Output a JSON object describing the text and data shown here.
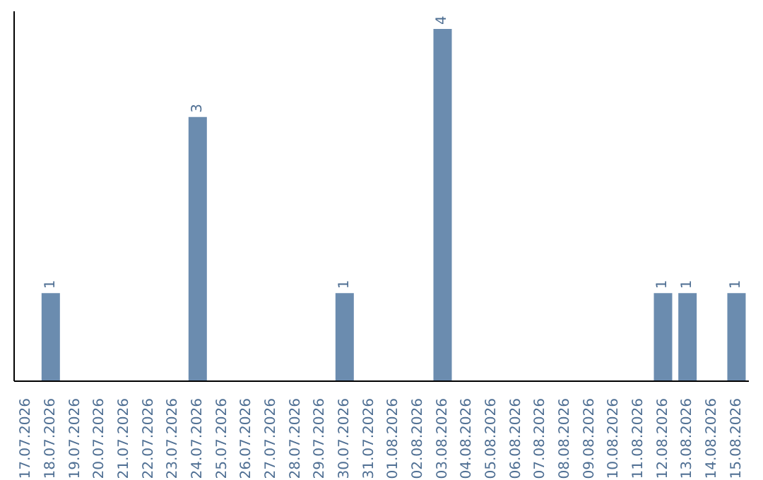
{
  "chart_data": {
    "type": "bar",
    "categories": [
      "17.07.2026",
      "18.07.2026",
      "19.07.2026",
      "20.07.2026",
      "21.07.2026",
      "22.07.2026",
      "23.07.2026",
      "24.07.2026",
      "25.07.2026",
      "26.07.2026",
      "27.07.2026",
      "28.07.2026",
      "29.07.2026",
      "30.07.2026",
      "31.07.2026",
      "01.08.2026",
      "02.08.2026",
      "03.08.2026",
      "04.08.2026",
      "05.08.2026",
      "06.08.2026",
      "07.08.2026",
      "08.08.2026",
      "09.08.2026",
      "10.08.2026",
      "11.08.2026",
      "12.08.2026",
      "13.08.2026",
      "14.08.2026",
      "15.08.2026"
    ],
    "values": [
      null,
      1,
      null,
      null,
      null,
      null,
      null,
      3,
      null,
      null,
      null,
      null,
      null,
      1,
      null,
      null,
      null,
      4,
      null,
      null,
      null,
      null,
      null,
      null,
      null,
      null,
      1,
      1,
      null,
      1
    ],
    "color": "#6b8caf",
    "data_labels": true,
    "grid": false,
    "tick_labels": "x"
  }
}
